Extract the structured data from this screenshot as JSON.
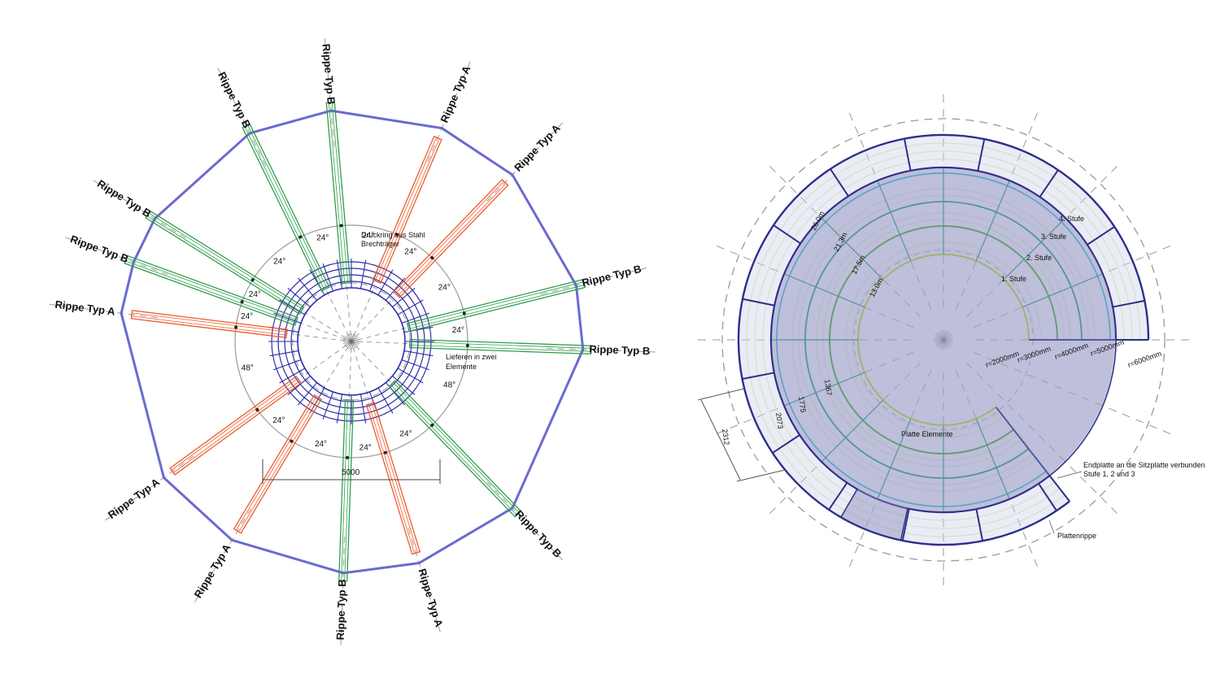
{
  "colors": {
    "polygon": "#6a6ad0",
    "ring": "#2e2ea8",
    "rib_a": "#ee5a2a",
    "rib_b": "#2f9e4a",
    "dash": "#9a9a9a",
    "tier1": "#b8d33a",
    "tier2": "#4caf3e",
    "tier3": "#2c9c8e",
    "tier4": "#35b7d0",
    "outer": "#2e2e8a",
    "wedge": "#c4c8e6"
  },
  "left_plan": {
    "rib_type_a": "Rippe Typ A",
    "rib_type_b": "Rippe Typ B",
    "ribs": [
      {
        "angle": 95,
        "type": "B"
      },
      {
        "angle": 67,
        "type": "A"
      },
      {
        "angle": 46,
        "type": "A"
      },
      {
        "angle": 14,
        "type": "B"
      },
      {
        "angle": -2,
        "type": "B"
      },
      {
        "angle": -46,
        "type": "B"
      },
      {
        "angle": -73,
        "type": "A"
      },
      {
        "angle": -92,
        "type": "B"
      },
      {
        "angle": -121,
        "type": "A"
      },
      {
        "angle": -144,
        "type": "A"
      },
      {
        "angle": 160,
        "type": "B"
      },
      {
        "angle": 173,
        "type": "A"
      },
      {
        "angle": 148,
        "type": "B"
      },
      {
        "angle": 116,
        "type": "B"
      }
    ],
    "angle_label": "24°",
    "angle_label_48": "48°",
    "note_ring_line1": "Druckring aus Stahl",
    "note_ring_line2": "Brechträger",
    "note_deliver_line1": "Lieferen in zwei",
    "note_deliver_line2": "Elemente",
    "dimension": "5000"
  },
  "right_plan": {
    "tiers": [
      {
        "label": "1. Stufe",
        "radius_label": "13.0m"
      },
      {
        "label": "2. Stufe",
        "radius_label": "17.5m"
      },
      {
        "label": "3. Stufe",
        "radius_label": "21.3m"
      },
      {
        "label": "4. Stufe",
        "radius_label": "26.0m"
      }
    ],
    "radii": [
      "r=2000mm",
      "r=3000mm",
      "r=4000mm",
      "r=5000mm",
      "r=6000mm"
    ],
    "dims": [
      "1367",
      "1775",
      "2073",
      "2312"
    ],
    "plate_elements": "Platte Elemente",
    "endplate_line1": "Endplatte an die Sitzplatte verbunden",
    "endplate_line2": "Stufe 1, 2 und 3",
    "plate_rib": "Plattenrippe"
  }
}
